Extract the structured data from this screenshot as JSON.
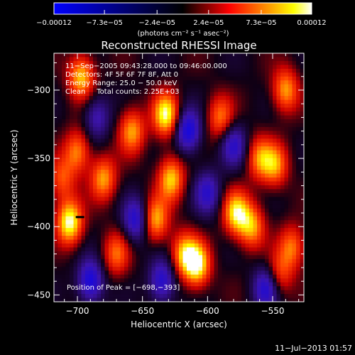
{
  "colorbar": {
    "ticks": [
      {
        "value": -0.00012,
        "label": "−0.00012"
      },
      {
        "value": -7.3e-05,
        "label": "−7.3e−05"
      },
      {
        "value": -2.4e-05,
        "label": "−2.4e−05"
      },
      {
        "value": 2.4e-05,
        "label": "2.4e−05"
      },
      {
        "value": 7.3e-05,
        "label": "7.3e−05"
      },
      {
        "value": 0.00012,
        "label": "0.00012"
      }
    ],
    "range": [
      -0.00012,
      0.00012
    ],
    "unit_label": "(photons cm⁻² s⁻¹ asec⁻²)",
    "colors": [
      "#0000ff",
      "#000000",
      "#ff0000",
      "#ffff00",
      "#ffffff"
    ]
  },
  "chart_data": {
    "type": "heatmap",
    "title": "Reconstructed RHESSI Image",
    "xlabel": "Heliocentric X (arcsec)",
    "ylabel": "Heliocentric Y (arcsec)",
    "xlim": [
      -718,
      -526
    ],
    "ylim": [
      -455,
      -273
    ],
    "xticks": [
      {
        "value": -700,
        "label": "−700"
      },
      {
        "value": -650,
        "label": "−650"
      },
      {
        "value": -600,
        "label": "−600"
      },
      {
        "value": -550,
        "label": "−550"
      }
    ],
    "yticks": [
      {
        "value": -300,
        "label": "−300"
      },
      {
        "value": -350,
        "label": "−350"
      },
      {
        "value": -400,
        "label": "−400"
      },
      {
        "value": -450,
        "label": "−450"
      }
    ],
    "annotations": [
      "11−Sep−2005 09:43:28.000 to 09:46:00.000",
      "Detectors: 4F 5F 6F 7F 8F, Att 0",
      "Energy Range: 25.0 − 50.0 keV",
      "Clean     Total counts: 2.25E+03"
    ],
    "peak_label": "Position of Peak = [−698,−393]",
    "peak": {
      "x": -698,
      "y": -393
    },
    "sources": [
      {
        "x": -706,
        "y": -397,
        "v": 1.0
      },
      {
        "x": -697,
        "y": -290,
        "v": 0.8
      },
      {
        "x": -700,
        "y": -345,
        "v": 0.65
      },
      {
        "x": -712,
        "y": -365,
        "v": 0.5
      },
      {
        "x": -680,
        "y": -365,
        "v": 0.7
      },
      {
        "x": -658,
        "y": -330,
        "v": 0.7
      },
      {
        "x": -670,
        "y": -420,
        "v": 0.55
      },
      {
        "x": -632,
        "y": -318,
        "v": 0.95
      },
      {
        "x": -628,
        "y": -365,
        "v": 0.8
      },
      {
        "x": -640,
        "y": -395,
        "v": 0.75
      },
      {
        "x": -618,
        "y": -420,
        "v": 0.7
      },
      {
        "x": -608,
        "y": -428,
        "v": 0.95
      },
      {
        "x": -578,
        "y": -390,
        "v": 0.85
      },
      {
        "x": -590,
        "y": -320,
        "v": 0.6
      },
      {
        "x": -566,
        "y": -400,
        "v": 0.7
      },
      {
        "x": -560,
        "y": -350,
        "v": 0.6
      },
      {
        "x": -548,
        "y": -355,
        "v": 0.65
      },
      {
        "x": -540,
        "y": -300,
        "v": 0.7
      },
      {
        "x": -545,
        "y": -435,
        "v": 0.5
      },
      {
        "x": -535,
        "y": -415,
        "v": 0.6
      },
      {
        "x": -690,
        "y": -440,
        "v": -0.8
      },
      {
        "x": -655,
        "y": -395,
        "v": -0.7
      },
      {
        "x": -615,
        "y": -330,
        "v": -0.8
      },
      {
        "x": -635,
        "y": -440,
        "v": -0.7
      },
      {
        "x": -580,
        "y": -340,
        "v": -0.6
      },
      {
        "x": -555,
        "y": -445,
        "v": -0.7
      },
      {
        "x": -685,
        "y": -320,
        "v": -0.5
      },
      {
        "x": -600,
        "y": -375,
        "v": -0.6
      }
    ]
  },
  "timestamp": "11−Jul−2013 01:57"
}
